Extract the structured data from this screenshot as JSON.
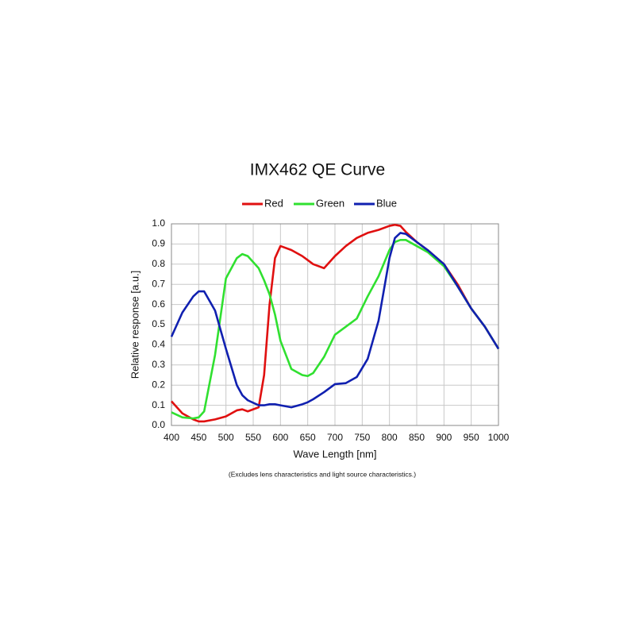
{
  "chart_data": {
    "type": "line",
    "title": "IMX462  QE Curve",
    "x_label": "Wave Length [nm]",
    "y_label": "Relative response [a.u.]",
    "note": "(Excludes lens characteristics and light source characteristics.)",
    "x": [
      400,
      420,
      440,
      450,
      460,
      480,
      500,
      520,
      530,
      540,
      560,
      570,
      580,
      590,
      600,
      620,
      640,
      650,
      660,
      680,
      700,
      720,
      740,
      760,
      780,
      800,
      810,
      820,
      830,
      850,
      870,
      900,
      925,
      950,
      975,
      1000
    ],
    "series": [
      {
        "name": "Red",
        "color": "#e01010",
        "values": [
          0.12,
          0.06,
          0.03,
          0.02,
          0.02,
          0.03,
          0.045,
          0.075,
          0.08,
          0.07,
          0.09,
          0.25,
          0.6,
          0.83,
          0.89,
          0.87,
          0.84,
          0.82,
          0.8,
          0.78,
          0.84,
          0.89,
          0.93,
          0.955,
          0.97,
          0.99,
          0.995,
          0.99,
          0.96,
          0.91,
          0.87,
          0.8,
          0.7,
          0.58,
          0.49,
          0.38
        ]
      },
      {
        "name": "Green",
        "color": "#30e030",
        "values": [
          0.065,
          0.04,
          0.035,
          0.04,
          0.07,
          0.35,
          0.73,
          0.83,
          0.85,
          0.84,
          0.78,
          0.72,
          0.65,
          0.55,
          0.42,
          0.28,
          0.25,
          0.245,
          0.26,
          0.34,
          0.45,
          0.49,
          0.53,
          0.64,
          0.74,
          0.87,
          0.91,
          0.92,
          0.92,
          0.89,
          0.86,
          0.79,
          0.69,
          0.58,
          0.49,
          0.38
        ]
      },
      {
        "name": "Blue",
        "color": "#1020b0",
        "values": [
          0.44,
          0.56,
          0.64,
          0.665,
          0.665,
          0.57,
          0.38,
          0.2,
          0.15,
          0.125,
          0.1,
          0.1,
          0.105,
          0.105,
          0.1,
          0.09,
          0.105,
          0.115,
          0.13,
          0.165,
          0.205,
          0.21,
          0.24,
          0.33,
          0.52,
          0.83,
          0.93,
          0.955,
          0.95,
          0.91,
          0.87,
          0.8,
          0.69,
          0.58,
          0.49,
          0.38
        ]
      }
    ],
    "xlim": [
      400,
      1000
    ],
    "xticks": [
      400,
      450,
      500,
      550,
      600,
      650,
      700,
      750,
      800,
      850,
      900,
      950,
      1000
    ],
    "ylim": [
      0,
      1
    ],
    "yticks": [
      {
        "value": 0,
        "label": "0.0"
      },
      0.1,
      0.2,
      0.3,
      0.4,
      0.5,
      0.6,
      0.7,
      0.8,
      0.9,
      {
        "value": 1,
        "label": "1.0"
      }
    ],
    "grid": true,
    "legend": "top"
  }
}
